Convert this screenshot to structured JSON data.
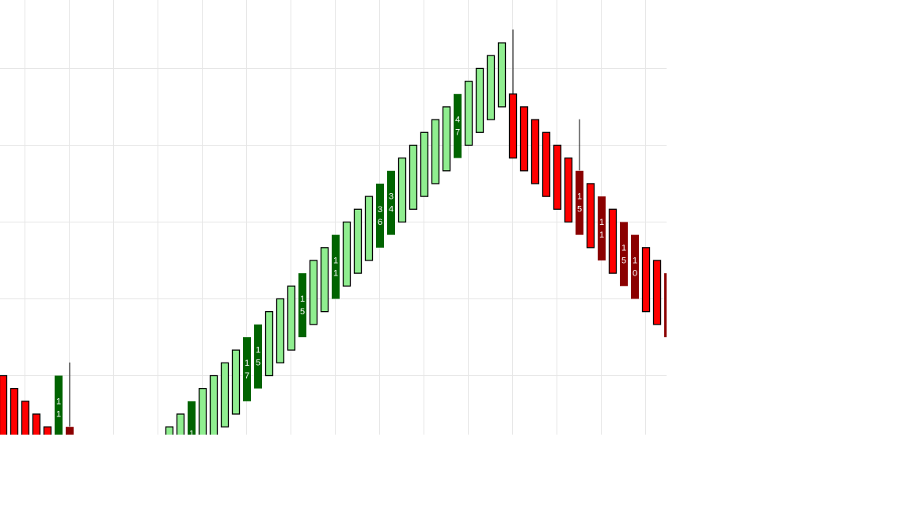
{
  "chart_data": {
    "type": "renko",
    "box_size_levels": 5,
    "grid": true,
    "colors": {
      "up": "#90EE90",
      "up_marked": "#006400",
      "down": "#FF0000",
      "down_marked": "#8B0000",
      "border": "#000000",
      "grid": "#E6E6E6",
      "label": "#FFFFFF"
    },
    "bars": [
      {
        "i": 0,
        "top": 0,
        "kind": "down"
      },
      {
        "i": 1,
        "top": -1,
        "kind": "down"
      },
      {
        "i": 2,
        "top": -2,
        "kind": "down"
      },
      {
        "i": 3,
        "top": -3,
        "kind": "down"
      },
      {
        "i": 4,
        "top": -4,
        "kind": "down"
      },
      {
        "i": 5,
        "top": 0,
        "kind": "up_marked",
        "label": "11"
      },
      {
        "i": 6,
        "top": -4,
        "kind": "down_marked",
        "wick": 1
      },
      {
        "i": 15,
        "top": -4,
        "kind": "up"
      },
      {
        "i": 16,
        "top": -3,
        "kind": "up"
      },
      {
        "i": 17,
        "top": -2,
        "kind": "up_marked",
        "label": "1"
      },
      {
        "i": 18,
        "top": -1,
        "kind": "up"
      },
      {
        "i": 19,
        "top": 0,
        "kind": "up"
      },
      {
        "i": 20,
        "top": 1,
        "kind": "up"
      },
      {
        "i": 21,
        "top": 2,
        "kind": "up"
      },
      {
        "i": 22,
        "top": 3,
        "kind": "up_marked",
        "label": "17"
      },
      {
        "i": 23,
        "top": 4,
        "kind": "up_marked",
        "label": "15"
      },
      {
        "i": 24,
        "top": 5,
        "kind": "up"
      },
      {
        "i": 25,
        "top": 6,
        "kind": "up"
      },
      {
        "i": 26,
        "top": 7,
        "kind": "up"
      },
      {
        "i": 27,
        "top": 8,
        "kind": "up_marked",
        "label": "15"
      },
      {
        "i": 28,
        "top": 9,
        "kind": "up"
      },
      {
        "i": 29,
        "top": 10,
        "kind": "up"
      },
      {
        "i": 30,
        "top": 11,
        "kind": "up_marked",
        "label": "11"
      },
      {
        "i": 31,
        "top": 12,
        "kind": "up"
      },
      {
        "i": 32,
        "top": 13,
        "kind": "up"
      },
      {
        "i": 33,
        "top": 14,
        "kind": "up"
      },
      {
        "i": 34,
        "top": 15,
        "kind": "up_marked",
        "label": "36"
      },
      {
        "i": 35,
        "top": 16,
        "kind": "up_marked",
        "label": "34"
      },
      {
        "i": 36,
        "top": 17,
        "kind": "up"
      },
      {
        "i": 37,
        "top": 18,
        "kind": "up"
      },
      {
        "i": 38,
        "top": 19,
        "kind": "up"
      },
      {
        "i": 39,
        "top": 20,
        "kind": "up"
      },
      {
        "i": 40,
        "top": 21,
        "kind": "up"
      },
      {
        "i": 41,
        "top": 22,
        "kind": "up_marked",
        "label": "47"
      },
      {
        "i": 42,
        "top": 23,
        "kind": "up"
      },
      {
        "i": 43,
        "top": 24,
        "kind": "up"
      },
      {
        "i": 44,
        "top": 25,
        "kind": "up"
      },
      {
        "i": 45,
        "top": 26,
        "kind": "up"
      },
      {
        "i": 46,
        "top": 22,
        "kind": "down",
        "wick": 27
      },
      {
        "i": 47,
        "top": 21,
        "kind": "down"
      },
      {
        "i": 48,
        "top": 20,
        "kind": "down"
      },
      {
        "i": 49,
        "top": 19,
        "kind": "down"
      },
      {
        "i": 50,
        "top": 18,
        "kind": "down"
      },
      {
        "i": 51,
        "top": 17,
        "kind": "down"
      },
      {
        "i": 52,
        "top": 16,
        "kind": "down_marked",
        "label": "15",
        "wick": 20
      },
      {
        "i": 53,
        "top": 15,
        "kind": "down"
      },
      {
        "i": 54,
        "top": 14,
        "kind": "down_marked",
        "label": "11"
      },
      {
        "i": 55,
        "top": 13,
        "kind": "down"
      },
      {
        "i": 56,
        "top": 12,
        "kind": "down_marked",
        "label": "15"
      },
      {
        "i": 57,
        "top": 11,
        "kind": "down_marked",
        "label": "10"
      },
      {
        "i": 58,
        "top": 10,
        "kind": "down"
      },
      {
        "i": 59,
        "top": 9,
        "kind": "down"
      },
      {
        "i": 60,
        "top": 8,
        "kind": "down_marked"
      }
    ]
  }
}
